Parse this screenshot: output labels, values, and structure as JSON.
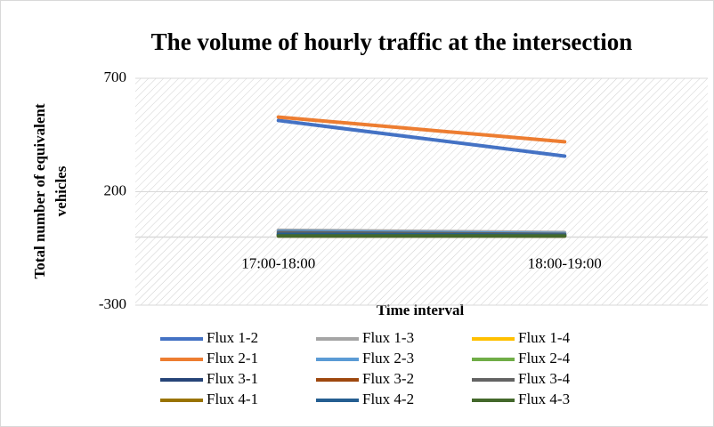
{
  "chart_data": {
    "type": "line",
    "title": "The volume of hourly traffic at the intersection",
    "x_label": "Time interval",
    "y_label": [
      "Total number  of equivalent",
      "vehicles"
    ],
    "categories": [
      "17:00-18:00",
      "18:00-19:00"
    ],
    "ylim": [
      -300,
      700
    ],
    "yticks": [
      -300,
      200,
      700
    ],
    "legend": "bottom",
    "series": [
      {
        "name": "Flux 1-2",
        "color": "#4472c4",
        "values": [
          514,
          357
        ]
      },
      {
        "name": "Flux 1-3",
        "color": "#a5a5a5",
        "values": [
          30,
          20
        ]
      },
      {
        "name": "Flux 1-4",
        "color": "#ffc000",
        "values": [
          10,
          5
        ]
      },
      {
        "name": "Flux 2-1",
        "color": "#ed7d31",
        "values": [
          529,
          420
        ]
      },
      {
        "name": "Flux 2-3",
        "color": "#5b9bd5",
        "values": [
          25,
          15
        ]
      },
      {
        "name": "Flux 2-4",
        "color": "#70ad47",
        "values": [
          15,
          10
        ]
      },
      {
        "name": "Flux 3-1",
        "color": "#264478",
        "values": [
          10,
          5
        ]
      },
      {
        "name": "Flux 3-2",
        "color": "#9e480e",
        "values": [
          5,
          5
        ]
      },
      {
        "name": "Flux 3-4",
        "color": "#636363",
        "values": [
          20,
          12
        ]
      },
      {
        "name": "Flux 4-1",
        "color": "#997300",
        "values": [
          8,
          6
        ]
      },
      {
        "name": "Flux 4-2",
        "color": "#255e91",
        "values": [
          12,
          8
        ]
      },
      {
        "name": "Flux 4-3",
        "color": "#43682b",
        "values": [
          5,
          5
        ]
      }
    ]
  }
}
